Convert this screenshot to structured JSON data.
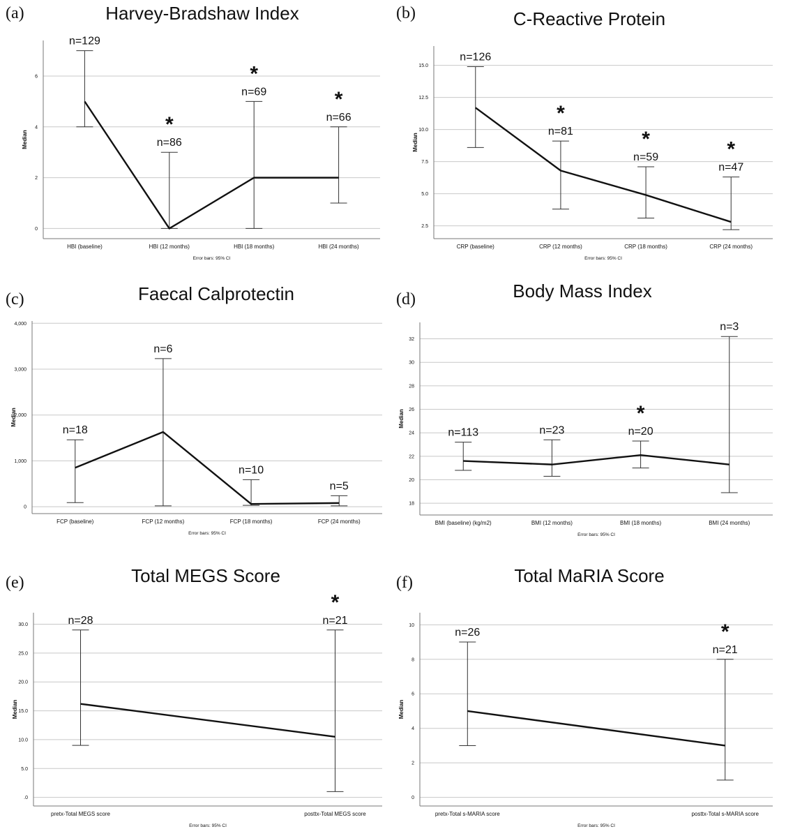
{
  "chart_data": [
    {
      "id": "a",
      "panel_label": "(a)",
      "type": "line",
      "title": "Harvey-Bradshaw Index",
      "ylabel": "Median",
      "footnote": "Error bars: 95% CI",
      "ylim": [
        -0.4,
        7.4
      ],
      "yticks": [
        0,
        2,
        4,
        6
      ],
      "ytick_labels": [
        "0",
        "2",
        "4",
        "6"
      ],
      "categories": [
        "HBI (baseline)",
        "HBI (12 months)",
        "HBI (18 months)",
        "HBI (24 months)"
      ],
      "values": [
        5,
        0,
        2,
        2
      ],
      "ci_lower": [
        4,
        0,
        0,
        1
      ],
      "ci_upper": [
        7,
        3,
        5,
        4
      ],
      "n_labels": [
        "n=129",
        "n=86",
        "n=69",
        "n=66"
      ],
      "significant": [
        false,
        true,
        true,
        true
      ],
      "annotation_symbol": "*"
    },
    {
      "id": "b",
      "panel_label": "(b)",
      "type": "line",
      "title": "C-Reactive Protein",
      "ylabel": "Median",
      "footnote": "Error bars: 95% CI",
      "ylim": [
        1.5,
        16.5
      ],
      "yticks": [
        2.5,
        5.0,
        7.5,
        10.0,
        12.5,
        15.0
      ],
      "ytick_labels": [
        "2.5",
        "5.0",
        "7.5",
        "10.0",
        "12.5",
        "15.0"
      ],
      "categories": [
        "CRP (baseline)",
        "CRP (12 months)",
        "CRP (18 months)",
        "CRP (24 months)"
      ],
      "values": [
        11.7,
        6.8,
        4.9,
        2.8
      ],
      "ci_lower": [
        8.6,
        3.8,
        3.1,
        2.2
      ],
      "ci_upper": [
        14.9,
        9.1,
        7.1,
        6.3
      ],
      "n_labels": [
        "n=126",
        "n=81",
        "n=59",
        "n=47"
      ],
      "significant": [
        false,
        true,
        true,
        true
      ],
      "annotation_symbol": "*"
    },
    {
      "id": "c",
      "panel_label": "(c)",
      "type": "line",
      "title": "Faecal Calprotectin",
      "ylabel": "Median",
      "footnote": "Error bars: 95% CI",
      "ylim": [
        -150,
        4050
      ],
      "yticks": [
        0,
        1000,
        2000,
        3000,
        4000
      ],
      "ytick_labels": [
        "0",
        "1,000",
        "2,000",
        "3,000",
        "4,000"
      ],
      "categories": [
        "FCP (baseline)",
        "FCP (12 months)",
        "FCP (18 months)",
        "FCP (24 months)"
      ],
      "values": [
        850,
        1630,
        60,
        80
      ],
      "ci_lower": [
        90,
        20,
        30,
        20
      ],
      "ci_upper": [
        1460,
        3230,
        590,
        240
      ],
      "n_labels": [
        "n=18",
        "n=6",
        "n=10",
        "n=5"
      ],
      "significant": [
        false,
        false,
        false,
        false
      ],
      "annotation_symbol": "*"
    },
    {
      "id": "d",
      "panel_label": "(d)",
      "type": "line",
      "title": "Body Mass Index",
      "ylabel": "Median",
      "footnote": "Error bars: 95% CI",
      "ylim": [
        17,
        33.4
      ],
      "yticks": [
        18,
        20,
        22,
        24,
        26,
        28,
        30,
        32
      ],
      "ytick_labels": [
        "18",
        "20",
        "22",
        "24",
        "26",
        "28",
        "30",
        "32"
      ],
      "categories": [
        "BMI (baseline) (kg/m2)",
        "BMI (12 months)",
        "BMI (18 months)",
        "BMI (24 months)"
      ],
      "values": [
        21.6,
        21.3,
        22.1,
        21.3
      ],
      "ci_lower": [
        20.8,
        20.3,
        21.0,
        18.9
      ],
      "ci_upper": [
        23.2,
        23.4,
        23.3,
        32.2
      ],
      "n_labels": [
        "n=113",
        "n=23",
        "n=20",
        "n=3"
      ],
      "significant": [
        false,
        false,
        true,
        false
      ],
      "annotation_symbol": "*"
    },
    {
      "id": "e",
      "panel_label": "(e)",
      "type": "line",
      "title": "Total MEGS Score",
      "ylabel": "Median",
      "footnote": "Error bars: 95% CI",
      "ylim": [
        -1.5,
        32
      ],
      "yticks": [
        0,
        5,
        10,
        15,
        20,
        25,
        30
      ],
      "ytick_labels": [
        ".0",
        "5.0",
        "10.0",
        "15.0",
        "20.0",
        "25.0",
        "30.0"
      ],
      "categories": [
        "pretx-Total MEGS score",
        "posttx-Total MEGS score"
      ],
      "values": [
        16.2,
        10.5
      ],
      "ci_lower": [
        9,
        1
      ],
      "ci_upper": [
        29,
        29
      ],
      "n_labels": [
        "n=28",
        "n=21"
      ],
      "significant": [
        false,
        true
      ],
      "annotation_symbol": "*"
    },
    {
      "id": "f",
      "panel_label": "(f)",
      "type": "line",
      "title": "Total MaRIA Score",
      "ylabel": "Median",
      "footnote": "Error bars: 95% CI",
      "ylim": [
        -0.5,
        10.7
      ],
      "yticks": [
        0,
        2,
        4,
        6,
        8,
        10
      ],
      "ytick_labels": [
        "0",
        "2",
        "4",
        "6",
        "8",
        "10"
      ],
      "categories": [
        "pretx-Total s-MARIA score",
        "posttx-Total s-MARIA score"
      ],
      "values": [
        5,
        3
      ],
      "ci_lower": [
        3,
        1
      ],
      "ci_upper": [
        9,
        8
      ],
      "n_labels": [
        "n=26",
        "n=21"
      ],
      "significant": [
        false,
        true
      ],
      "annotation_symbol": "*"
    }
  ]
}
